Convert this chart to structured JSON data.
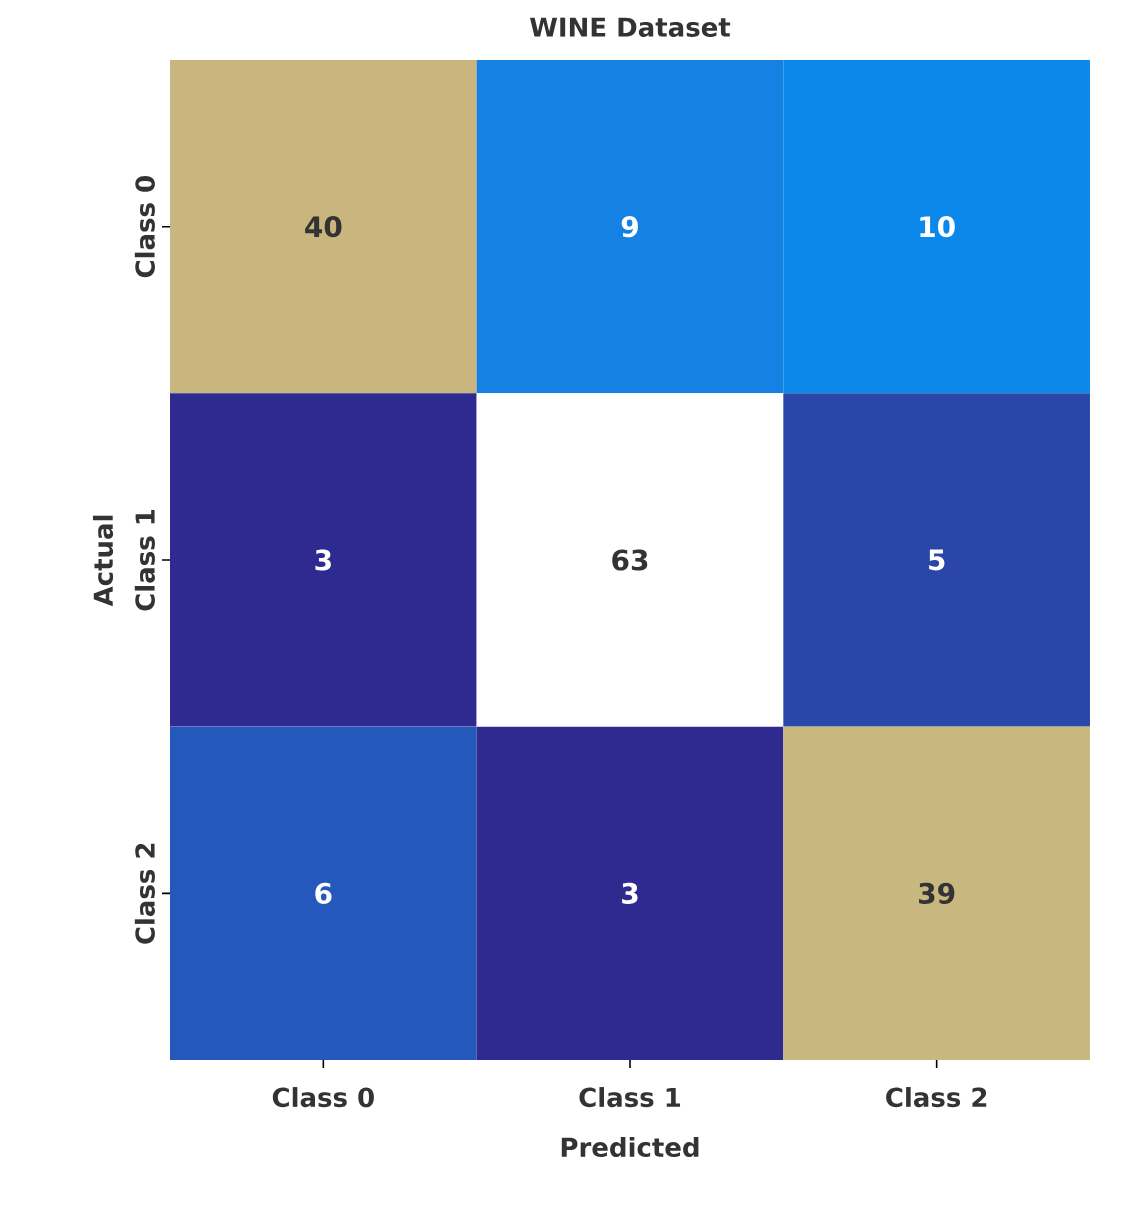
{
  "chart_data": {
    "type": "heatmap",
    "title": "WINE Dataset",
    "xlabel": "Predicted",
    "ylabel": "Actual",
    "categories": [
      "Class 0",
      "Class 1",
      "Class 2"
    ],
    "y_categories": [
      "Class 0",
      "Class 1",
      "Class 2"
    ],
    "cells": [
      [
        40,
        9,
        10
      ],
      [
        3,
        63,
        5
      ],
      [
        6,
        3,
        39
      ]
    ],
    "colors": [
      "#c8b67e",
      "#1581e2",
      "#0b88ea",
      "#2e2a8f",
      "#ffffff",
      "#2a46a8",
      "#2459bb",
      "#2e2a8f",
      "#c9b780"
    ],
    "data_labels": true
  }
}
